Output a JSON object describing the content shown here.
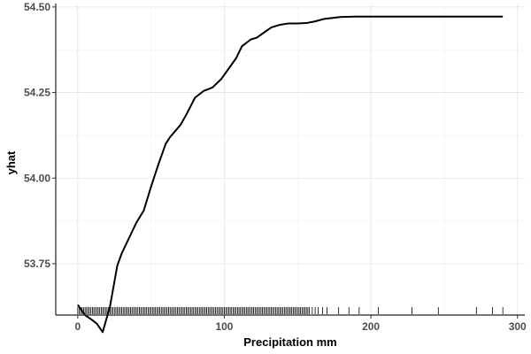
{
  "chart_data": {
    "type": "line",
    "xlabel": "Precipitation mm",
    "ylabel": "yhat",
    "xlim": [
      -15,
      305
    ],
    "ylim": [
      53.6,
      54.51
    ],
    "x_ticks": [
      0,
      100,
      200,
      300
    ],
    "y_ticks": [
      53.75,
      54.0,
      54.25,
      54.5
    ],
    "x_tick_labels": [
      "0",
      "100",
      "200",
      "300"
    ],
    "y_tick_labels": [
      "53.75",
      "54.00",
      "54.25",
      "54.50"
    ],
    "grid": true,
    "series": [
      {
        "x": [
          0,
          5,
          10,
          13,
          17,
          22,
          27,
          30,
          35,
          40,
          45,
          50,
          55,
          60,
          63,
          66,
          70,
          74,
          80,
          86,
          92,
          98,
          103,
          108,
          112,
          118,
          122,
          127,
          132,
          138,
          144,
          150,
          156,
          162,
          168,
          174,
          180,
          190,
          200,
          220,
          240,
          260,
          280,
          290
        ],
        "y": [
          53.63,
          53.6,
          53.585,
          53.575,
          53.55,
          53.625,
          53.745,
          53.78,
          53.825,
          53.87,
          53.905,
          53.975,
          54.04,
          54.1,
          54.12,
          54.135,
          54.155,
          54.185,
          54.235,
          54.255,
          54.265,
          54.29,
          54.32,
          54.35,
          54.385,
          54.405,
          54.41,
          54.425,
          54.44,
          54.448,
          54.452,
          54.452,
          54.453,
          54.458,
          54.465,
          54.468,
          54.471,
          54.472,
          54.472,
          54.472,
          54.472,
          54.472,
          54.472,
          54.472
        ]
      }
    ],
    "rug": [
      0,
      1,
      2,
      3,
      4,
      5,
      6,
      7,
      8,
      9,
      10,
      11,
      12,
      13,
      14,
      15,
      16,
      17,
      18,
      19,
      20,
      21,
      22,
      23,
      24,
      25,
      26,
      27,
      28,
      29,
      30,
      31,
      32,
      33,
      34,
      35,
      36,
      37,
      38,
      39,
      40,
      41,
      42,
      43,
      44,
      45,
      46,
      47,
      48,
      49,
      50,
      51,
      52,
      53,
      54,
      55,
      56,
      57,
      58,
      59,
      60,
      61,
      62,
      63,
      64,
      65,
      66,
      67,
      68,
      69,
      70,
      71,
      72,
      73,
      74,
      75,
      76,
      77,
      78,
      79,
      80,
      81,
      82,
      83,
      84,
      85,
      86,
      87,
      88,
      89,
      90,
      91,
      92,
      93,
      94,
      95,
      96,
      97,
      98,
      99,
      100,
      101,
      102,
      103,
      104,
      105,
      106,
      107,
      108,
      109,
      110,
      111,
      112,
      113,
      114,
      115,
      116,
      117,
      118,
      119,
      120,
      121,
      122,
      123,
      124,
      125,
      126,
      127,
      128,
      129,
      130,
      131,
      132,
      133,
      134,
      135,
      136,
      137,
      138,
      139,
      140,
      141,
      142,
      143,
      144,
      145,
      146,
      147,
      148,
      149,
      150,
      151,
      152,
      153,
      154,
      155,
      156,
      157,
      158,
      160,
      162,
      164,
      167,
      170,
      178,
      185,
      192,
      205,
      228,
      246,
      272,
      283,
      290
    ]
  }
}
